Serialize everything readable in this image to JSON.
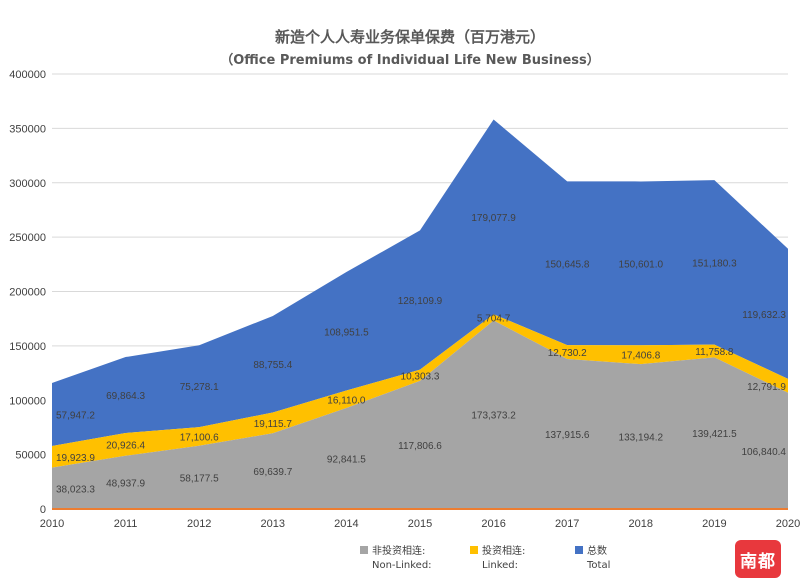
{
  "chart_data": {
    "type": "area",
    "stacked": true,
    "title": "新造个人人寿业务保单保费（百万港元）",
    "subtitle": "（Office Premiums of Individual Life New Business）",
    "x": [
      "2010",
      "2011",
      "2012",
      "2013",
      "2014",
      "2015",
      "2016",
      "2017",
      "2018",
      "2019",
      "2020"
    ],
    "ylim": [
      0,
      400000
    ],
    "yticks": [
      "0",
      "50000",
      "100000",
      "150000",
      "200000",
      "250000",
      "300000",
      "350000",
      "400000"
    ],
    "grid": true,
    "legend_position": "bottom",
    "series": [
      {
        "name": "非投资相连:",
        "name_en": "Non-Linked:",
        "color": "#a5a5a5",
        "values": [
          38023.3,
          48937.9,
          58177.5,
          69639.7,
          92841.5,
          117806.6,
          173373.2,
          137915.6,
          133194.2,
          139421.5,
          106840.4
        ],
        "labels": [
          "38,023.3",
          "48,937.9",
          "58,177.5",
          "69,639.7",
          "92,841.5",
          "117,806.6",
          "173,373.2",
          "137,915.6",
          "133,194.2",
          "139,421.5",
          "106,840.4"
        ]
      },
      {
        "name": "投资相连:",
        "name_en": "Linked:",
        "color": "#ffc000",
        "values": [
          19923.9,
          20926.4,
          17100.6,
          19115.7,
          16110.0,
          10303.3,
          5704.7,
          12730.2,
          17406.8,
          11758.8,
          12791.9
        ],
        "labels": [
          "19,923.9",
          "20,926.4",
          "17,100.6",
          "19,115.7",
          "16,110.0",
          "10,303.3",
          "5,704.7",
          "12,730.2",
          "17,406.8",
          "11,758.8",
          "12,791.9"
        ]
      },
      {
        "name": "总数",
        "name_en": "Total",
        "color": "#4472c4",
        "values": [
          57947.2,
          69864.3,
          75278.1,
          88755.4,
          108951.5,
          128109.9,
          179077.9,
          150645.8,
          150601.0,
          151180.3,
          119632.3
        ],
        "labels": [
          "57,947.2",
          "69,864.3",
          "75,278.1",
          "88,755.4",
          "108,951.5",
          "128,109.9",
          "179,077.9",
          "150,645.8",
          "150,601.0",
          "151,180.3",
          "119,632.3"
        ]
      }
    ]
  },
  "logo": {
    "text": "南都"
  }
}
